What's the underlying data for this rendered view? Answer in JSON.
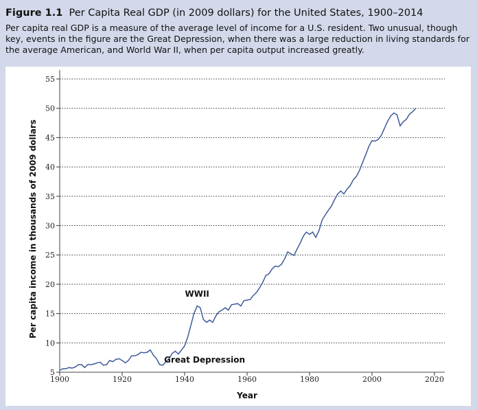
{
  "figure": {
    "number": "Figure 1.1",
    "title": "Per Capita Real GDP (in 2009 dollars) for the United States, 1900–2014",
    "description": "Per capita real GDP is a measure of the average level of income for a U.S. resident. Two unusual, though key, events in the figure are the Great Depression, when there was a large reduction in living standards for the average American, and World War II, when per capita output increased greatly."
  },
  "colors": {
    "panel_background": "#d3d9ea",
    "plot_background": "#ffffff",
    "line": "#3d5a99",
    "grid": "#333333"
  },
  "chart_data": {
    "type": "line",
    "xlabel": "Year",
    "ylabel": "Per capita income in thousands of 2009 dollars",
    "xlim": [
      1900,
      2020
    ],
    "ylim": [
      5,
      55
    ],
    "x_ticks": [
      1900,
      1920,
      1940,
      1960,
      1980,
      2000,
      2020
    ],
    "y_ticks": [
      5,
      10,
      15,
      20,
      25,
      30,
      35,
      40,
      45,
      50,
      55
    ],
    "grid": "horizontal dotted",
    "annotations": [
      {
        "text": "WWII",
        "x": 1944,
        "y": 16.7
      },
      {
        "text": "Great Depression",
        "x": 1933,
        "y": 6.3
      }
    ],
    "series": [
      {
        "x": [
          1900,
          1901,
          1902,
          1903,
          1904,
          1905,
          1906,
          1907,
          1908,
          1909,
          1910,
          1911,
          1912,
          1913,
          1914,
          1915,
          1916,
          1917,
          1918,
          1919,
          1920,
          1921,
          1922,
          1923,
          1924,
          1925,
          1926,
          1927,
          1928,
          1929,
          1930,
          1931,
          1932,
          1933,
          1934,
          1935,
          1936,
          1937,
          1938,
          1939,
          1940,
          1941,
          1942,
          1943,
          1944,
          1945,
          1946,
          1947,
          1948,
          1949,
          1950,
          1951,
          1952,
          1953,
          1954,
          1955,
          1956,
          1957,
          1958,
          1959,
          1960,
          1961,
          1962,
          1963,
          1964,
          1965,
          1966,
          1967,
          1968,
          1969,
          1970,
          1971,
          1972,
          1973,
          1974,
          1975,
          1976,
          1977,
          1978,
          1979,
          1980,
          1981,
          1982,
          1983,
          1984,
          1985,
          1986,
          1987,
          1988,
          1989,
          1990,
          1991,
          1992,
          1993,
          1994,
          1995,
          1996,
          1997,
          1998,
          1999,
          2000,
          2001,
          2002,
          2003,
          2004,
          2005,
          2006,
          2007,
          2008,
          2009,
          2010,
          2011,
          2012,
          2013,
          2014
        ],
        "y": [
          5.3,
          5.6,
          5.6,
          5.8,
          5.7,
          5.9,
          6.3,
          6.3,
          5.8,
          6.3,
          6.3,
          6.4,
          6.6,
          6.7,
          6.2,
          6.3,
          7.0,
          6.8,
          7.2,
          7.3,
          7.0,
          6.6,
          7.0,
          7.8,
          7.8,
          8.0,
          8.4,
          8.3,
          8.4,
          8.8,
          7.9,
          7.3,
          6.3,
          6.2,
          6.8,
          7.3,
          8.2,
          8.6,
          8.1,
          8.8,
          9.5,
          11.0,
          13.0,
          15.0,
          16.3,
          16.0,
          14.0,
          13.5,
          13.9,
          13.5,
          14.6,
          15.3,
          15.6,
          16.0,
          15.6,
          16.5,
          16.6,
          16.7,
          16.3,
          17.2,
          17.3,
          17.4,
          18.1,
          18.6,
          19.4,
          20.3,
          21.5,
          21.8,
          22.6,
          23.1,
          23.0,
          23.4,
          24.3,
          25.5,
          25.2,
          24.9,
          26.0,
          27.0,
          28.2,
          28.9,
          28.5,
          28.9,
          28.0,
          29.1,
          30.9,
          31.8,
          32.6,
          33.3,
          34.4,
          35.4,
          35.9,
          35.4,
          36.2,
          36.8,
          37.8,
          38.4,
          39.4,
          40.8,
          42.1,
          43.5,
          44.5,
          44.4,
          44.7,
          45.4,
          46.6,
          47.8,
          48.7,
          49.2,
          48.9,
          47.0,
          47.7,
          48.1,
          49.0,
          49.4,
          50.0
        ]
      }
    ]
  }
}
